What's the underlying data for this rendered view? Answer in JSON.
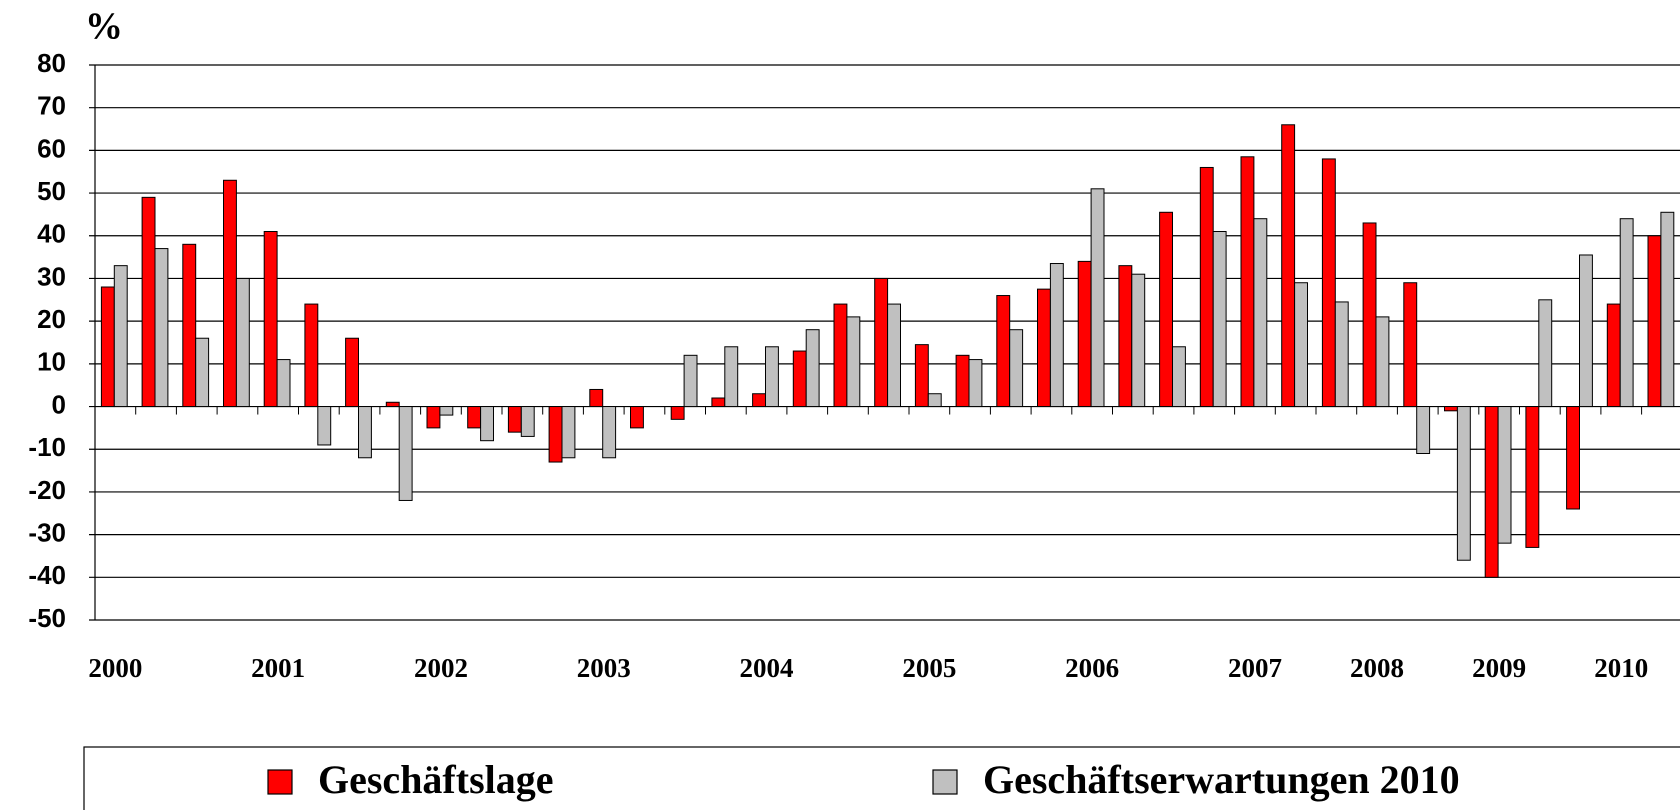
{
  "chart_data": {
    "type": "bar",
    "y_label": "%",
    "categories": [
      "2000",
      null,
      null,
      null,
      "2001",
      null,
      null,
      null,
      "2002",
      null,
      null,
      null,
      "2003",
      null,
      null,
      null,
      "2004",
      null,
      null,
      null,
      "2005",
      null,
      null,
      null,
      "2006",
      null,
      null,
      null,
      "2007",
      null,
      null,
      "2008",
      null,
      null,
      "2009",
      null,
      null,
      "2010",
      null
    ],
    "series": [
      {
        "name": "Geschäftslage",
        "color": "#ff0000",
        "values": [
          28,
          49,
          38,
          53,
          41,
          24,
          16,
          1,
          -5,
          -5,
          -6,
          -13,
          4,
          -5,
          -3,
          2,
          3,
          13,
          24,
          30,
          14.5,
          12,
          26,
          27.5,
          34,
          33,
          45.5,
          56,
          58.5,
          66,
          58,
          43,
          29,
          -1,
          -40,
          -33,
          -24,
          24,
          40
        ]
      },
      {
        "name": "Geschäftserwartungen 2010",
        "color": "#c0c0c0",
        "values": [
          33,
          37,
          16,
          30,
          11,
          -9,
          -12,
          -22,
          -2,
          -8,
          -7,
          -12,
          -12,
          null,
          12,
          14,
          14,
          18,
          21,
          24,
          3,
          11,
          18,
          33.5,
          51,
          31,
          14,
          41,
          44,
          29,
          24.5,
          21,
          -11,
          -36,
          -32,
          25,
          35.5,
          44,
          45.5
        ]
      }
    ],
    "ylim": [
      -50,
      80
    ],
    "yticks": [
      -50,
      -40,
      -30,
      -20,
      -10,
      0,
      10,
      20,
      30,
      40,
      50,
      60,
      70,
      80
    ],
    "grid": true
  }
}
